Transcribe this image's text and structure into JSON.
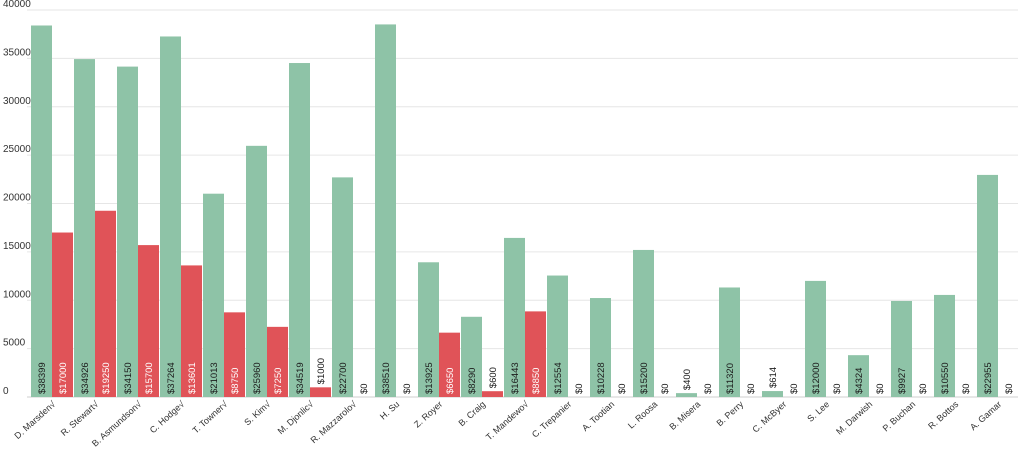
{
  "chart_data": {
    "type": "bar",
    "categories": [
      "D. Marsden√",
      "R. Stewart√",
      "B. Asmundson√",
      "C. Hodge√",
      "T. Towner√",
      "S. Kim√",
      "M. Djonlic√",
      "R. Mazzarolo√",
      "H. Su",
      "Z. Royer",
      "B. Craig",
      "T. Mandewo√",
      "C. Trepanier",
      "A. Tootian",
      "L. Roosa",
      "B. Misera",
      "B. Perry",
      "C. McByer",
      "S. Lee",
      "M. Darwish",
      "P. Buchan",
      "R. Bottos",
      "A. Gamar"
    ],
    "series": [
      {
        "color": "#8ec3a7",
        "values": [
          38399,
          34926,
          34150,
          37264,
          21013,
          25960,
          34519,
          22700,
          38510,
          13925,
          8290,
          16443,
          12554,
          10228,
          15200,
          400,
          11320,
          614,
          12000,
          4324,
          9927,
          10550,
          22955
        ],
        "labels": [
          "$38399",
          "$34926",
          "$34150",
          "$37264",
          "$21013",
          "$25960",
          "$34519",
          "$22700",
          "$38510",
          "$13925",
          "$8290",
          "$16443",
          "$12554",
          "$10228",
          "$15200",
          "$400",
          "$11320",
          "$614",
          "$12000",
          "$4324",
          "$9927",
          "$10550",
          "$22955"
        ]
      },
      {
        "color": "#e05358",
        "values": [
          17000,
          19250,
          15700,
          13601,
          8750,
          7250,
          1000,
          0,
          0,
          6650,
          600,
          8850,
          0,
          0,
          0,
          0,
          0,
          0,
          0,
          0,
          0,
          0,
          0
        ],
        "labels": [
          "$17000",
          "$19250",
          "$15700",
          "$13601",
          "$8750",
          "$7250",
          "$1000",
          "$0",
          "$0",
          "$6650",
          "$600",
          "$8850",
          "$0",
          "$0",
          "$0",
          "$0",
          "$0",
          "$0",
          "$0",
          "$0",
          "$0",
          "$0",
          "$0"
        ]
      }
    ],
    "yticks": [
      "0",
      "5000",
      "10000",
      "15000",
      "20000",
      "25000",
      "30000",
      "35000",
      "40000"
    ],
    "ylim": [
      0,
      40000
    ],
    "grid": true,
    "legend": "none"
  }
}
